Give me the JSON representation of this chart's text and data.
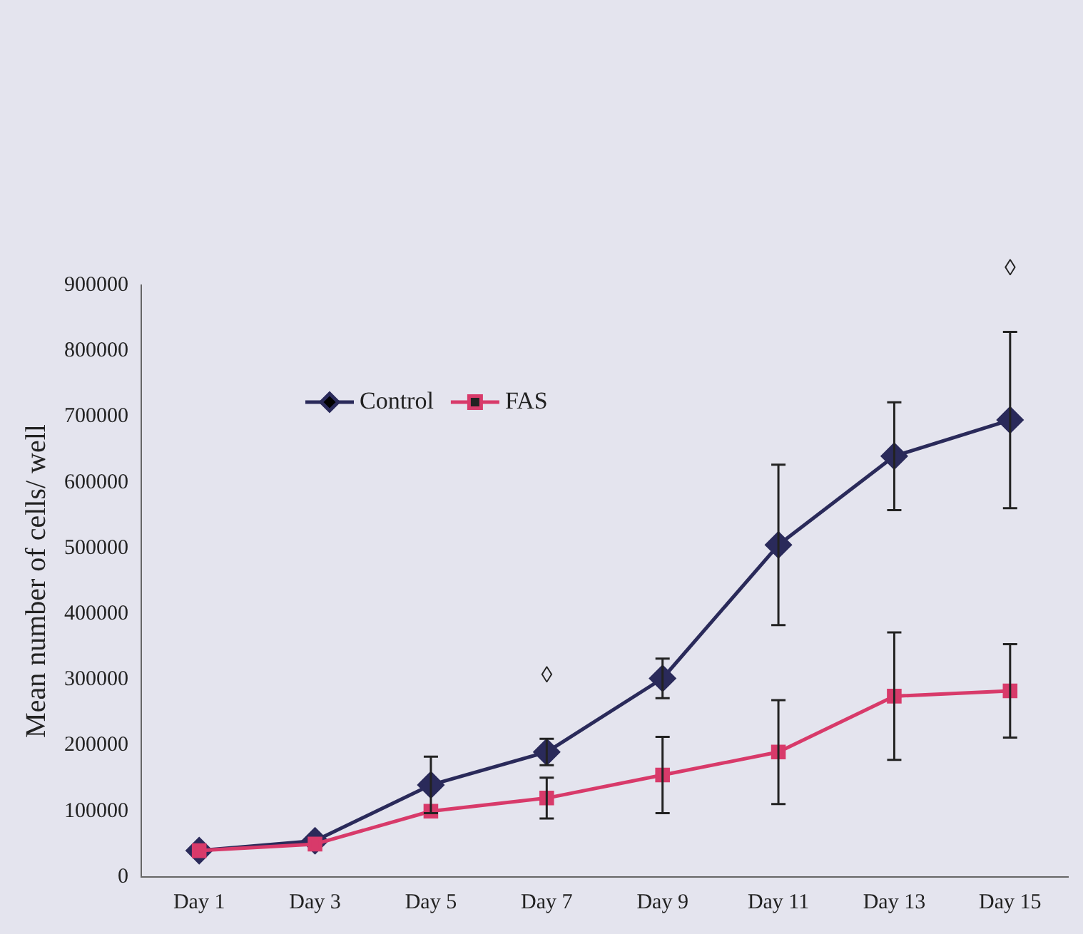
{
  "chart_data": {
    "type": "line",
    "ylabel": "Mean number of cells/ well",
    "categories": [
      "Day 1",
      "Day 3",
      "Day 5",
      "Day 7",
      "Day 9",
      "Day 11",
      "Day 13",
      "Day 15"
    ],
    "series": [
      {
        "name": "Control",
        "color": "#2a2a5a",
        "marker": "diamond",
        "values": [
          40000,
          55000,
          140000,
          190000,
          302000,
          505000,
          640000,
          695000
        ],
        "errors": [
          null,
          null,
          43000,
          20000,
          30000,
          122000,
          82000,
          134000
        ]
      },
      {
        "name": "FAS",
        "color": "#d83a6a",
        "marker": "square",
        "values": [
          40000,
          50000,
          100000,
          120000,
          155000,
          190000,
          275000,
          283000
        ],
        "errors": [
          null,
          null,
          null,
          31000,
          58000,
          79000,
          97000,
          71000
        ]
      }
    ],
    "ylim": [
      0,
      900000
    ],
    "yticks": [
      0,
      100000,
      200000,
      300000,
      400000,
      500000,
      600000,
      700000,
      800000,
      900000
    ],
    "grid": false,
    "legend": "top left",
    "annotations": [
      {
        "text": "◊",
        "x": "Day 7",
        "y": 210000
      },
      {
        "text": "◊",
        "x": "Day 15",
        "y": 829000
      }
    ]
  }
}
